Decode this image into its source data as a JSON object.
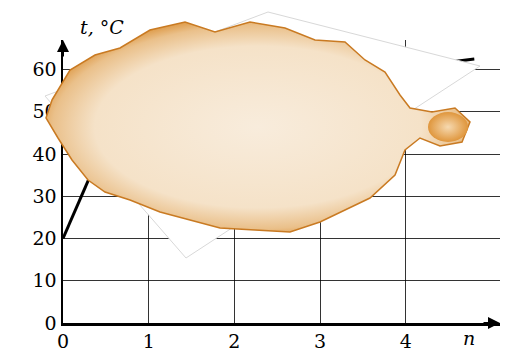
{
  "chart_data": {
    "type": "line",
    "x_label": "n",
    "y_label": "t, °C",
    "x": [
      0,
      0.3,
      1,
      4.4,
      4.8
    ],
    "values": [
      20,
      34,
      null,
      61.5,
      62.5
    ],
    "color": "#000000",
    "xlim": [
      0,
      5.1
    ],
    "xticks": [
      0,
      1,
      2,
      3,
      4
    ],
    "ylim": [
      0,
      67
    ],
    "yticks": [
      0,
      10,
      20,
      30,
      40,
      50,
      60
    ],
    "grid": true
  }
}
